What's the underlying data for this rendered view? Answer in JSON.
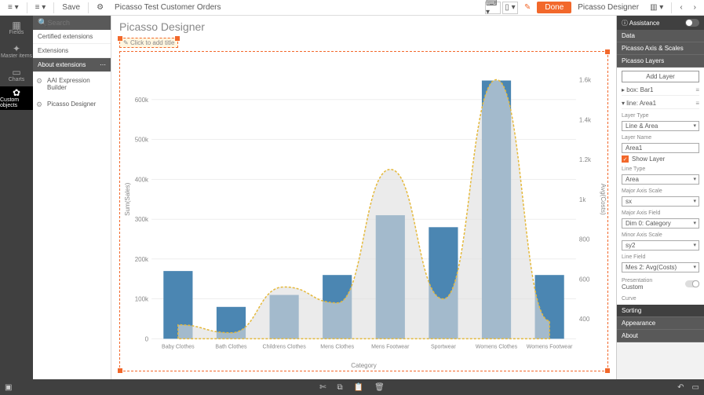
{
  "topbar": {
    "save_label": "Save",
    "app_title": "Picasso Test Customer Orders",
    "done_label": "Done",
    "designer_label": "Picasso Designer"
  },
  "leftnav": {
    "items": [
      {
        "icon": "▦",
        "label": "Fields"
      },
      {
        "icon": "✦",
        "label": "Master items"
      },
      {
        "icon": "▭",
        "label": "Charts"
      },
      {
        "icon": "✿",
        "label": "Custom objects"
      }
    ],
    "active_index": 3
  },
  "sidebar": {
    "search_placeholder": "Search",
    "items": [
      {
        "label": "Certified extensions"
      },
      {
        "label": "Extensions"
      },
      {
        "label": "About extensions"
      }
    ],
    "selected_index": 2,
    "sub_items": [
      {
        "label": "AAI Expression Builder"
      },
      {
        "label": "Picasso Designer"
      }
    ]
  },
  "chart": {
    "title": "Picasso Designer",
    "subtitle_placeholder": "Click to add title",
    "x_axis_label": "Category",
    "y_left_label": "Sum(Sales)",
    "y_right_label": "Avg(Costs)",
    "categories": [
      "Baby Clothes",
      "Bath Clothes",
      "Childrens Clothes",
      "Mens Clothes",
      "Mens Footwear",
      "Sportwear",
      "Womens Clothes",
      "Womens Footwear"
    ],
    "bar_values": [
      170000,
      80000,
      110000,
      160000,
      310000,
      280000,
      648000,
      160000
    ],
    "area_values": [
      370,
      330,
      560,
      480,
      1150,
      500,
      1600,
      390
    ],
    "y_left_ticks": [
      0,
      100000,
      200000,
      300000,
      400000,
      500000,
      600000
    ],
    "y_left_tick_labels": [
      "0",
      "100k",
      "200k",
      "300k",
      "400k",
      "500k",
      "600k"
    ],
    "y_right_ticks": [
      400,
      600,
      800,
      1000,
      1200,
      1400,
      1600
    ],
    "y_right_tick_labels": [
      "400",
      "600",
      "800",
      "1k",
      "1.2k",
      "1.4k",
      "1.6k"
    ],
    "colors": {
      "bar": "#4b86b2",
      "area_fill": "#dddddd",
      "area_stroke": "#e5b93c",
      "grid": "#dddddd",
      "background": "#ffffff"
    },
    "y_left_max": 700000,
    "y_right_min": 300,
    "y_right_max": 1700
  },
  "properties": {
    "header": "Assistance",
    "sections": {
      "data": "Data",
      "axis_scales": "Picasso Axis & Scales",
      "layers": "Picasso Layers",
      "sorting": "Sorting",
      "appearance": "Appearance",
      "about": "About"
    },
    "add_layer": "Add Layer",
    "layer_list": [
      {
        "prefix": "▸",
        "type": "box:",
        "name": "Bar1"
      },
      {
        "prefix": "▾",
        "type": "line:",
        "name": "Area1"
      }
    ],
    "fields": {
      "layer_type_label": "Layer Type",
      "layer_type_value": "Line & Area",
      "layer_name_label": "Layer Name",
      "layer_name_value": "Area1",
      "show_layer_label": "Show Layer",
      "line_type_label": "Line Type",
      "line_type_value": "Area",
      "major_axis_scale_label": "Major Axis Scale",
      "major_axis_scale_value": "sx",
      "major_axis_field_label": "Major Axis Field",
      "major_axis_field_value": "Dim 0: Category",
      "minor_axis_scale_label": "Minor Axis Scale",
      "minor_axis_scale_value": "sy2",
      "line_field_label": "Line Field",
      "line_field_value": "Mes 2: Avg(Costs)",
      "presentation_label": "Presentation",
      "presentation_value": "Custom",
      "curve_label": "Curve"
    }
  }
}
